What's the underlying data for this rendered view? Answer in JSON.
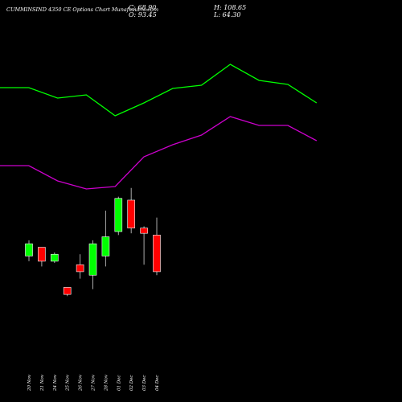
{
  "header": {
    "title": "CUMMINSIND 4350  CE Options  Chart Munafasutra.com",
    "close": "C: 68.90",
    "open": "O: 93.45",
    "high": "H: 108.65",
    "low": "L: 64.30"
  },
  "chart_data": {
    "type": "candlestick",
    "categories": [
      "20 Nov",
      "21 Nov",
      "24 Nov",
      "25 Nov",
      "26 Nov",
      "27 Nov",
      "28 Nov",
      "01 Dec",
      "02 Dec",
      "03 Dec",
      "04 Dec"
    ],
    "candles": [
      {
        "open": 33,
        "high": 42,
        "low": 30,
        "close": 40,
        "color": "#00ff00"
      },
      {
        "open": 38,
        "high": 38,
        "low": 27,
        "close": 30,
        "color": "#ff0000"
      },
      {
        "open": 30,
        "high": 35,
        "low": 29,
        "close": 34,
        "color": "#00ff00"
      },
      {
        "open": 15,
        "high": 15,
        "low": 10,
        "close": 11,
        "color": "#ff0000"
      },
      {
        "open": 28,
        "high": 34,
        "low": 20,
        "close": 24,
        "color": "#ff0000"
      },
      {
        "open": 22,
        "high": 42,
        "low": 14,
        "close": 40,
        "color": "#00ff00"
      },
      {
        "open": 33,
        "high": 59,
        "low": 27,
        "close": 44,
        "color": "#00ff00"
      },
      {
        "open": 47,
        "high": 67,
        "low": 45,
        "close": 66,
        "color": "#00ff00"
      },
      {
        "open": 65,
        "high": 72,
        "low": 46,
        "close": 49,
        "color": "#ff0000"
      },
      {
        "open": 49,
        "high": 50,
        "low": 28,
        "close": 46,
        "color": "#ff0000"
      },
      {
        "open": 45,
        "high": 55,
        "low": 22,
        "close": 24,
        "color": "#ff0000"
      }
    ],
    "price_ylim": [
      0,
      100
    ],
    "upper_band": {
      "color": "#00ff00",
      "x": [
        0,
        1,
        2,
        3,
        4,
        5,
        6,
        7,
        8,
        9,
        10,
        11
      ],
      "values": [
        391,
        391,
        378,
        382,
        356,
        372,
        390,
        394,
        420,
        400,
        395,
        372
      ]
    },
    "lower_band": {
      "color": "#cc00cc",
      "x": [
        0,
        1,
        2,
        3,
        4,
        5,
        6,
        7,
        8,
        9,
        10,
        11
      ],
      "values": [
        294,
        294,
        275,
        265,
        268,
        305,
        320,
        332,
        355,
        344,
        344,
        325
      ]
    },
    "band_ylim": [
      0,
      500
    ],
    "grid": false,
    "background": "#000000"
  }
}
